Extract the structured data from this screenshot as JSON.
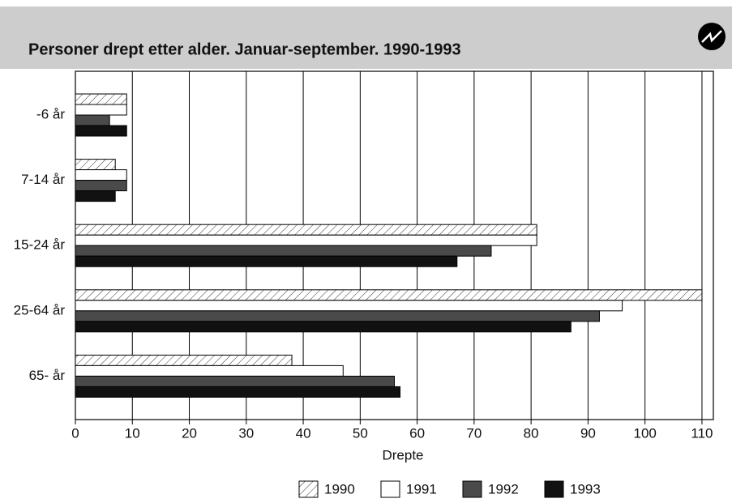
{
  "chart_data": {
    "type": "barh",
    "title": "Personer drept etter alder. Januar-september. 1990-1993",
    "xlabel": "Drepte",
    "categories": [
      "-6 år",
      "7-14 år",
      "15-24 år",
      "25-64 år",
      "65- år"
    ],
    "series": [
      {
        "name": "1990",
        "color": "#ffffff",
        "pattern": "hatch",
        "values": [
          9,
          7,
          81,
          110,
          38
        ]
      },
      {
        "name": "1991",
        "color": "#ffffff",
        "values": [
          9,
          9,
          81,
          96,
          47
        ]
      },
      {
        "name": "1992",
        "color": "#4a4a4a",
        "values": [
          6,
          9,
          73,
          92,
          56
        ]
      },
      {
        "name": "1993",
        "color": "#111111",
        "values": [
          9,
          7,
          67,
          87,
          57
        ]
      }
    ],
    "xlim": [
      0,
      112
    ],
    "xticks": [
      0,
      10,
      20,
      30,
      40,
      50,
      60,
      70,
      80,
      90,
      100,
      110
    ],
    "grid": true,
    "legend": "bottom"
  }
}
